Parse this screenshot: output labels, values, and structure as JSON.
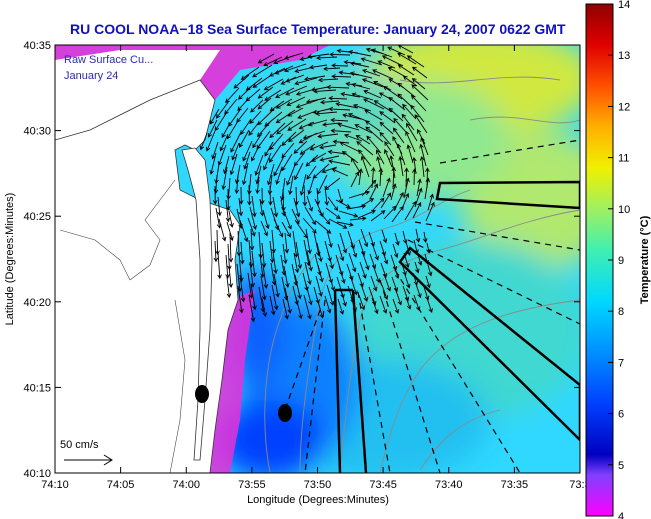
{
  "title": "RU COOL  NOAA−18  Sea Surface Temperature:  January 24, 2007 0622 GMT",
  "overlay_text": [
    "Raw Surface Cu...",
    "January 24"
  ],
  "axes": {
    "xlabel": "Longitude (Degrees:Minutes)",
    "ylabel": "Latitude (Degrees:Minutes)",
    "x_ticks": [
      "74:10",
      "74:05",
      "74:00",
      "73:55",
      "73:50",
      "73:45",
      "73:40",
      "73:35",
      "73:3"
    ],
    "y_ticks": [
      "40:35",
      "40:30",
      "40:25",
      "40:20",
      "40:15",
      "40:10"
    ]
  },
  "colorbar": {
    "label": "Temperature (°C)",
    "ticks": [
      "14",
      "13",
      "12",
      "11",
      "10",
      "9",
      "8",
      "7",
      "6",
      "5",
      "4"
    ],
    "range": [
      4,
      14
    ]
  },
  "scale_vector": {
    "label": "50 cm/s"
  },
  "colors": {
    "title": "#1010c0",
    "land": "#ffffff",
    "shallow_cold": "#e830d8",
    "cold": "#2040ff",
    "cool": "#00c8ff",
    "mid": "#40e0c0",
    "warm": "#c0e860"
  }
}
